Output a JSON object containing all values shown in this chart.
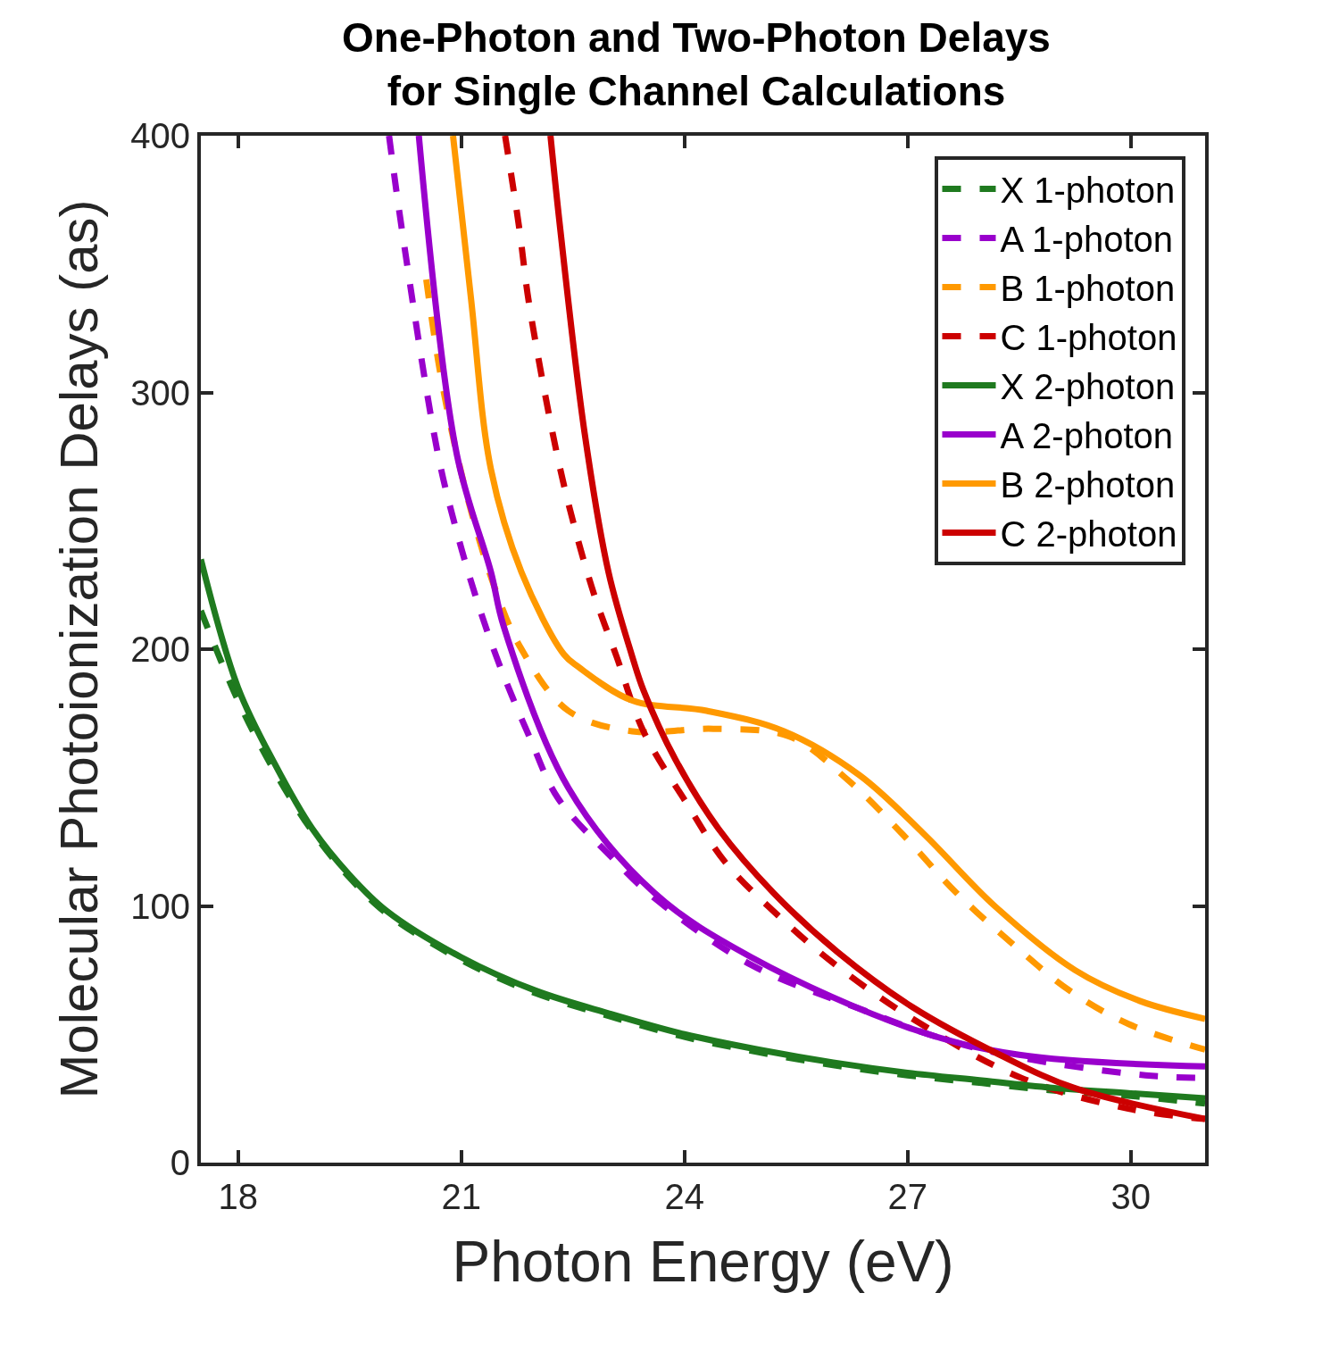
{
  "chart_data": {
    "type": "line",
    "title": "One-Photon and Two-Photon Delays\nfor Single Channel Calculations",
    "xlabel": "Photon Energy (eV)",
    "ylabel": "Molecular Photoionization Delays (as)",
    "xlim": [
      17.5,
      31
    ],
    "xticks": [
      18,
      21,
      24,
      27,
      30
    ],
    "ylim": [
      0,
      400
    ],
    "yticks": [
      0,
      100,
      200,
      300,
      400
    ],
    "grid": false,
    "legend": "top right",
    "marker": "none",
    "series": [
      {
        "name": "X 1-photon",
        "color": "#1f7a1f",
        "line_style": "dashed",
        "x": [
          17.5,
          18,
          18.5,
          19,
          19.5,
          20,
          21,
          22,
          23,
          24,
          25,
          26,
          27,
          28,
          29,
          30,
          31
        ],
        "values": [
          215,
          180,
          152,
          129,
          111,
          97,
          79,
          66,
          57,
          49,
          43,
          38,
          34,
          31,
          28,
          26,
          23
        ]
      },
      {
        "name": "A 1-photon",
        "color": "#9900cc",
        "line_style": "dashed",
        "x": [
          20.03,
          20.2,
          20.68,
          20.91,
          21.19,
          21.5,
          21.93,
          22.3,
          23.02,
          23.6,
          24.9,
          26.35,
          27.5,
          28.5,
          30.2,
          31
        ],
        "values": [
          400,
          364,
          277,
          249,
          221,
          195,
          165,
          142,
          119,
          103,
          77,
          60,
          48,
          41,
          34,
          33
        ]
      },
      {
        "name": "B 1-photon",
        "color": "#ff9900",
        "line_style": "dashed",
        "x": [
          20.53,
          20.71,
          20.91,
          21.15,
          21.45,
          21.79,
          22.44,
          23.3,
          24.39,
          25.41,
          26.2,
          26.93,
          27.66,
          28.46,
          29.18,
          29.97,
          31
        ],
        "values": [
          344,
          309,
          280,
          252,
          224,
          201,
          176,
          168,
          169,
          166,
          149,
          128,
          105,
          84,
          67,
          54,
          44
        ]
      },
      {
        "name": "C 1-photon",
        "color": "#cc0000",
        "line_style": "dashed",
        "x": [
          21.59,
          21.78,
          21.91,
          22.28,
          22.51,
          22.79,
          23.09,
          23.45,
          24.03,
          24.55,
          25.27,
          25.99,
          27.07,
          28.53,
          29.97,
          31
        ],
        "values": [
          400,
          364,
          335,
          277,
          249,
          221,
          197,
          168,
          140,
          117,
          96,
          78,
          56,
          33,
          21,
          17
        ]
      },
      {
        "name": "X 2-photon",
        "color": "#1f7a1f",
        "line_style": "solid",
        "x": [
          17.5,
          18,
          18.5,
          19,
          19.5,
          20,
          21,
          22,
          23,
          24,
          25,
          26,
          27,
          28,
          29,
          30,
          31
        ],
        "values": [
          235,
          185,
          155,
          130,
          112,
          98,
          80,
          67,
          58,
          50,
          44,
          39,
          35,
          32,
          29,
          27,
          25
        ]
      },
      {
        "name": "A 2-photon",
        "color": "#9900cc",
        "line_style": "solid",
        "x": [
          20.43,
          20.94,
          21.4,
          21.57,
          22.44,
          23.6,
          24.9,
          27.07,
          28.5,
          31
        ],
        "values": [
          400,
          276,
          230,
          209,
          146,
          105,
          80,
          52,
          42,
          37.5
        ]
      },
      {
        "name": "B 2-photon",
        "color": "#ff9900",
        "line_style": "solid",
        "x": [
          20.89,
          21.13,
          21.4,
          21.81,
          22.38,
          22.58,
          23.3,
          24.3,
          25.34,
          26.35,
          27.22,
          28.17,
          29.25,
          30.12,
          31
        ],
        "values": [
          400,
          337,
          270,
          230,
          198,
          193,
          180,
          176,
          168,
          151,
          128,
          100,
          75,
          63,
          56
        ]
      },
      {
        "name": "C 2-photon",
        "color": "#cc0000",
        "line_style": "solid",
        "x": [
          22.2,
          22.33,
          22.66,
          22.98,
          23.29,
          23.45,
          23.88,
          24.46,
          25.2,
          26.06,
          27.07,
          28.24,
          29.25,
          31
        ],
        "values": [
          400,
          364,
          284,
          230,
          198,
          184,
          157,
          130,
          105,
          82,
          60.5,
          42,
          29,
          17
        ]
      }
    ]
  }
}
